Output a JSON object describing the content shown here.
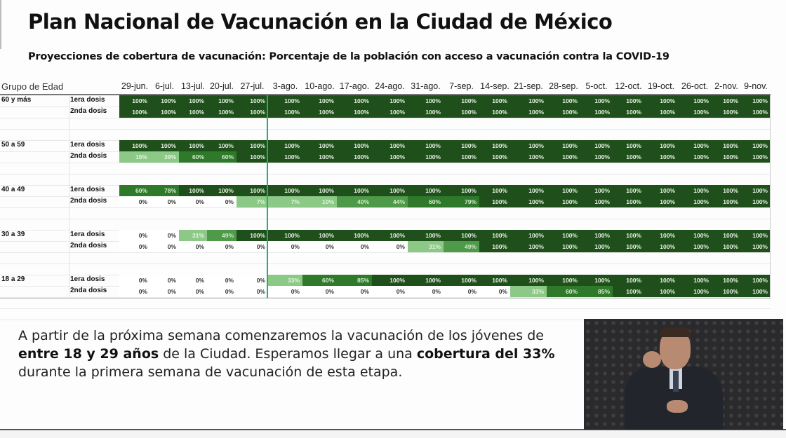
{
  "slide": {
    "title": "Plan Nacional de Vacunación en la Ciudad de México",
    "subtitle": "Proyecciones de cobertura de vacunación: Porcentaje de la población con acceso a vacunación contra la COVID-19"
  },
  "table": {
    "header_label": "Grupo de Edad",
    "dates": [
      "29-jun.",
      "6-jul.",
      "13-jul.",
      "20-jul.",
      "27-jul.",
      "3-ago.",
      "10-ago.",
      "17-ago.",
      "24-ago.",
      "31-ago.",
      "7-sep.",
      "14-sep.",
      "21-sep.",
      "28-sep.",
      "5-oct.",
      "12-oct.",
      "19-oct.",
      "26-oct.",
      "2-nov.",
      "9-nov."
    ],
    "current_week_marker_after": "27-jul.",
    "groups": [
      {
        "label": "60 y más",
        "rows": [
          {
            "dose": "1era dosis",
            "values": [
              "100%",
              "100%",
              "100%",
              "100%",
              "100%",
              "100%",
              "100%",
              "100%",
              "100%",
              "100%",
              "100%",
              "100%",
              "100%",
              "100%",
              "100%",
              "100%",
              "100%",
              "100%",
              "100%",
              "100%"
            ]
          },
          {
            "dose": "2nda dosis",
            "values": [
              "100%",
              "100%",
              "100%",
              "100%",
              "100%",
              "100%",
              "100%",
              "100%",
              "100%",
              "100%",
              "100%",
              "100%",
              "100%",
              "100%",
              "100%",
              "100%",
              "100%",
              "100%",
              "100%",
              "100%"
            ]
          }
        ]
      },
      {
        "label": "50 a 59",
        "rows": [
          {
            "dose": "1era dosis",
            "values": [
              "100%",
              "100%",
              "100%",
              "100%",
              "100%",
              "100%",
              "100%",
              "100%",
              "100%",
              "100%",
              "100%",
              "100%",
              "100%",
              "100%",
              "100%",
              "100%",
              "100%",
              "100%",
              "100%",
              "100%"
            ]
          },
          {
            "dose": "2nda dosis",
            "values": [
              "15%",
              "39%",
              "60%",
              "60%",
              "100%",
              "100%",
              "100%",
              "100%",
              "100%",
              "100%",
              "100%",
              "100%",
              "100%",
              "100%",
              "100%",
              "100%",
              "100%",
              "100%",
              "100%",
              "100%"
            ]
          }
        ]
      },
      {
        "label": "40 a 49",
        "rows": [
          {
            "dose": "1era dosis",
            "values": [
              "60%",
              "78%",
              "100%",
              "100%",
              "100%",
              "100%",
              "100%",
              "100%",
              "100%",
              "100%",
              "100%",
              "100%",
              "100%",
              "100%",
              "100%",
              "100%",
              "100%",
              "100%",
              "100%",
              "100%"
            ]
          },
          {
            "dose": "2nda dosis",
            "values": [
              "0%",
              "0%",
              "0%",
              "0%",
              "7%",
              "7%",
              "10%",
              "40%",
              "44%",
              "60%",
              "79%",
              "100%",
              "100%",
              "100%",
              "100%",
              "100%",
              "100%",
              "100%",
              "100%",
              "100%"
            ]
          }
        ]
      },
      {
        "label": "30 a 39",
        "rows": [
          {
            "dose": "1era dosis",
            "values": [
              "0%",
              "0%",
              "31%",
              "49%",
              "100%",
              "100%",
              "100%",
              "100%",
              "100%",
              "100%",
              "100%",
              "100%",
              "100%",
              "100%",
              "100%",
              "100%",
              "100%",
              "100%",
              "100%",
              "100%"
            ]
          },
          {
            "dose": "2nda dosis",
            "values": [
              "0%",
              "0%",
              "0%",
              "0%",
              "0%",
              "0%",
              "0%",
              "0%",
              "0%",
              "31%",
              "49%",
              "100%",
              "100%",
              "100%",
              "100%",
              "100%",
              "100%",
              "100%",
              "100%",
              "100%"
            ]
          }
        ]
      },
      {
        "label": "18 a 29",
        "rows": [
          {
            "dose": "1era dosis",
            "values": [
              "0%",
              "0%",
              "0%",
              "0%",
              "0%",
              "33%",
              "60%",
              "85%",
              "100%",
              "100%",
              "100%",
              "100%",
              "100%",
              "100%",
              "100%",
              "100%",
              "100%",
              "100%",
              "100%",
              "100%"
            ]
          },
          {
            "dose": "2nda dosis",
            "values": [
              "0%",
              "0%",
              "0%",
              "0%",
              "0%",
              "0%",
              "0%",
              "0%",
              "0%",
              "0%",
              "0%",
              "0%",
              "33%",
              "60%",
              "85%",
              "100%",
              "100%",
              "100%",
              "100%",
              "100%"
            ]
          }
        ]
      }
    ]
  },
  "colors": {
    "full": "#1f4f1a",
    "high": "#2f7a2a",
    "mid": "#4f9a48",
    "low": "#8cc986",
    "zero": "#ffffff",
    "marker": "#1db36b"
  },
  "paragraph": {
    "part1": "A partir de la próxima semana comenzaremos la vacunación de los jóvenes de ",
    "bold1": "entre 18 y 29 años",
    "part2": " de la Ciudad. Esperamos llegar a una ",
    "bold2": "cobertura del 33%",
    "part3": " durante la primera semana de vacunación de esta etapa."
  },
  "video": {
    "label": "sign-language-interpreter"
  }
}
